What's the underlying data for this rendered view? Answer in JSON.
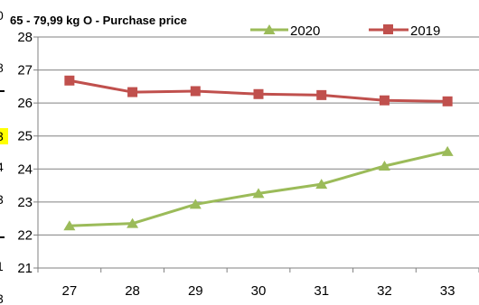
{
  "chart_data": {
    "type": "line",
    "title": "65 - 79,99 kg O - Purchase price",
    "x": [
      27,
      28,
      29,
      30,
      31,
      32,
      33
    ],
    "ylim": [
      21,
      28
    ],
    "yticks": [
      21,
      22,
      23,
      24,
      25,
      26,
      27,
      28
    ],
    "grid": true,
    "legend_position": "top",
    "series": [
      {
        "name": "2020",
        "color": "#9BBB59",
        "marker": "triangle",
        "values": [
          22.28,
          22.35,
          22.93,
          23.26,
          23.54,
          24.09,
          24.53
        ]
      },
      {
        "name": "2019",
        "color": "#C0504D",
        "marker": "square",
        "values": [
          26.68,
          26.33,
          26.36,
          26.27,
          26.24,
          26.08,
          26.05
        ]
      }
    ]
  }
}
